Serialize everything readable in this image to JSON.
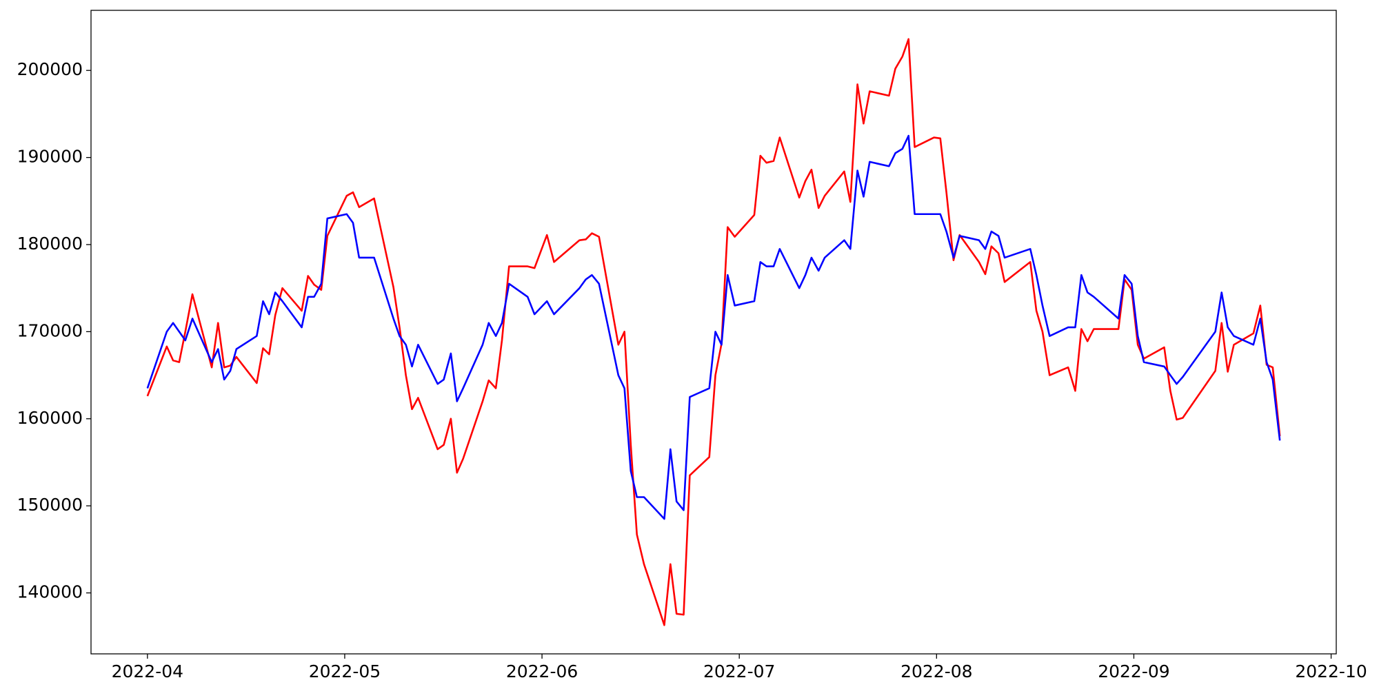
{
  "chart_data": {
    "type": "line",
    "x": [
      4.0,
      4.098,
      4.13,
      4.161,
      4.192,
      4.228,
      4.326,
      4.358,
      4.389,
      4.42,
      4.451,
      4.554,
      4.586,
      4.617,
      4.648,
      4.684,
      4.782,
      4.814,
      4.845,
      4.881,
      4.912,
      5.01,
      5.042,
      5.073,
      5.149,
      5.247,
      5.278,
      5.31,
      5.341,
      5.372,
      5.471,
      5.502,
      5.538,
      5.569,
      5.6,
      5.699,
      5.73,
      5.766,
      5.797,
      5.833,
      5.927,
      5.962,
      6.025,
      6.061,
      6.19,
      6.222,
      6.253,
      6.289,
      6.387,
      6.418,
      6.45,
      6.481,
      6.517,
      6.62,
      6.651,
      6.682,
      6.718,
      6.749,
      6.848,
      6.879,
      6.91,
      6.941,
      6.977,
      7.076,
      7.107,
      7.138,
      7.174,
      7.205,
      7.304,
      7.335,
      7.366,
      7.402,
      7.433,
      7.532,
      7.563,
      7.599,
      7.63,
      7.661,
      7.759,
      7.791,
      7.827,
      7.858,
      7.889,
      7.987,
      8.019,
      8.05,
      8.086,
      8.117,
      8.215,
      8.247,
      8.278,
      8.314,
      8.345,
      8.475,
      8.506,
      8.537,
      8.573,
      8.667,
      8.703,
      8.734,
      8.765,
      8.797,
      8.922,
      8.953,
      8.989,
      9.02,
      9.051,
      9.154,
      9.185,
      9.217,
      9.248,
      9.413,
      9.445,
      9.476,
      9.507,
      9.606,
      9.641,
      9.673,
      9.704,
      9.74
    ],
    "series": [
      {
        "color": "#ff0000",
        "values": [
          162600,
          168300,
          166700,
          166500,
          170000,
          174300,
          165900,
          171000,
          165900,
          166100,
          167100,
          164100,
          168100,
          167400,
          171900,
          175000,
          172400,
          176400,
          175400,
          174800,
          181000,
          185600,
          186000,
          184300,
          185300,
          175100,
          170500,
          165000,
          161100,
          162400,
          156500,
          157000,
          160000,
          153800,
          155400,
          162000,
          164400,
          163500,
          169000,
          177500,
          177500,
          177300,
          181100,
          178000,
          180500,
          180600,
          181300,
          180900,
          168500,
          170000,
          157000,
          146700,
          143300,
          136300,
          143300,
          137600,
          137500,
          153500,
          155600,
          165000,
          168600,
          182000,
          180900,
          183400,
          190200,
          189400,
          189600,
          192300,
          185400,
          187300,
          188600,
          184200,
          185600,
          188400,
          184900,
          198400,
          193900,
          197600,
          197100,
          200200,
          201600,
          203600,
          191200,
          192300,
          192200,
          186000,
          178200,
          181100,
          178000,
          176600,
          179800,
          179000,
          175700,
          178000,
          172400,
          170000,
          165000,
          165900,
          163200,
          170300,
          168900,
          170300,
          170300,
          176000,
          174800,
          168500,
          166900,
          168200,
          163200,
          159900,
          160100,
          165500,
          171000,
          165400,
          168500,
          169800,
          173000,
          166200,
          165900,
          158000
        ]
      },
      {
        "color": "#0000ff",
        "values": [
          163500,
          170000,
          171000,
          170000,
          169000,
          171500,
          166500,
          168000,
          164500,
          165500,
          168000,
          169500,
          173500,
          172000,
          174500,
          173500,
          170500,
          174000,
          174000,
          175500,
          183000,
          183500,
          182500,
          178500,
          178500,
          171500,
          169500,
          168500,
          166000,
          168500,
          164000,
          164500,
          167500,
          162000,
          163500,
          168500,
          171000,
          169500,
          171000,
          175500,
          174000,
          172000,
          173500,
          172000,
          175000,
          176000,
          176500,
          175500,
          165000,
          163500,
          154000,
          151000,
          151000,
          148500,
          156500,
          150500,
          149500,
          162500,
          163500,
          170000,
          168500,
          176500,
          173000,
          173500,
          178000,
          177500,
          177500,
          179500,
          175000,
          176500,
          178500,
          177000,
          178500,
          180500,
          179500,
          188500,
          185500,
          189500,
          189000,
          190500,
          191000,
          192500,
          183500,
          183500,
          183500,
          181500,
          178500,
          181000,
          180500,
          179500,
          181500,
          181000,
          178500,
          179500,
          176500,
          173000,
          169500,
          170500,
          170500,
          176500,
          174500,
          174000,
          171500,
          176500,
          175500,
          169500,
          166500,
          166000,
          165000,
          164000,
          164800,
          170000,
          174500,
          170500,
          169500,
          168500,
          171500,
          166500,
          164500,
          157500
        ]
      }
    ],
    "xlim": [
      3.714,
      10.026
    ],
    "xticks": [
      {
        "value": 4,
        "label": "2022-04"
      },
      {
        "value": 5,
        "label": "2022-05"
      },
      {
        "value": 6,
        "label": "2022-06"
      },
      {
        "value": 7,
        "label": "2022-07"
      },
      {
        "value": 8,
        "label": "2022-08"
      },
      {
        "value": 9,
        "label": "2022-09"
      },
      {
        "value": 10,
        "label": "2022-10"
      }
    ],
    "ylim": [
      133000,
      206900
    ],
    "yticks": [
      140000,
      150000,
      160000,
      170000,
      180000,
      190000,
      200000
    ],
    "grid": false
  }
}
